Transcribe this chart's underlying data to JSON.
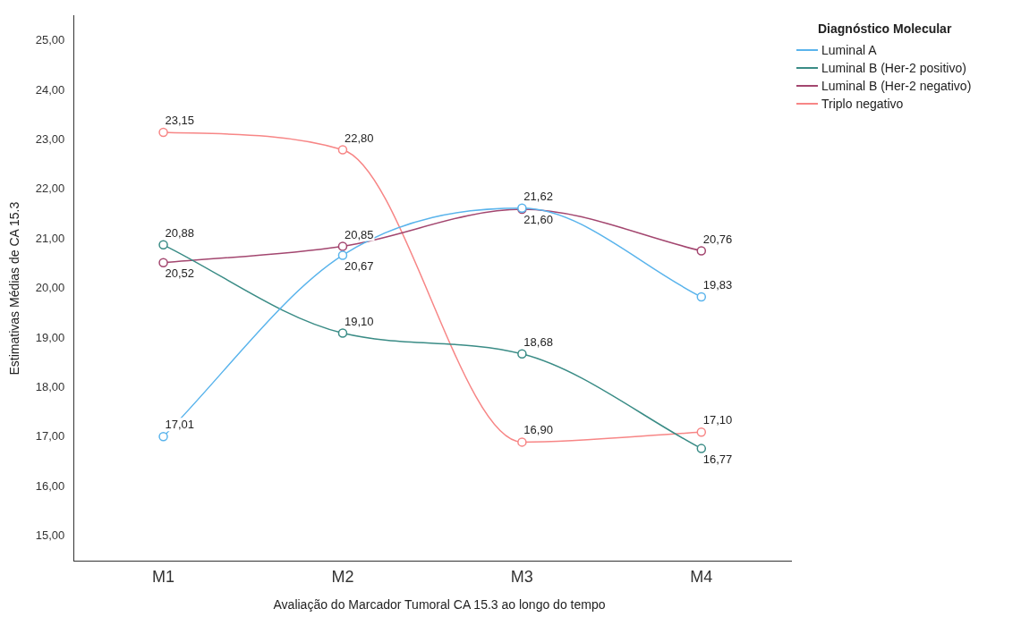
{
  "chart_data": {
    "type": "line",
    "xlabel": "Avaliação do Marcador Tumoral CA 15.3 ao longo do tempo",
    "ylabel": "Estimativas Médias de CA 15.3",
    "legend_title": "Diagnóstico Molecular",
    "categories": [
      "M1",
      "M2",
      "M3",
      "M4"
    ],
    "series": [
      {
        "name": "Luminal A",
        "color": "#5ab4ec",
        "values": [
          17.01,
          20.67,
          21.62,
          19.83
        ],
        "value_labels": [
          "17,01",
          "20,67",
          "21,62",
          "19,83"
        ]
      },
      {
        "name": "Luminal B (Her-2 positivo)",
        "color": "#3a8c86",
        "values": [
          20.88,
          19.1,
          18.68,
          16.77
        ],
        "value_labels": [
          "20,88",
          "19,10",
          "18,68",
          "16,77"
        ]
      },
      {
        "name": "Luminal B (Her-2 negativo)",
        "color": "#a3466f",
        "values": [
          20.52,
          20.85,
          21.6,
          20.76
        ],
        "value_labels": [
          "20,52",
          "20,85",
          "21,60",
          "20,76"
        ]
      },
      {
        "name": "Triplo negativo",
        "color": "#f78686",
        "values": [
          23.15,
          22.8,
          16.9,
          17.1
        ],
        "value_labels": [
          "23,15",
          "22,80",
          "16,90",
          "17,10"
        ]
      }
    ],
    "ylim": [
      14.5,
      25.5
    ],
    "yticks": [
      {
        "value": 15,
        "label": "15,00"
      },
      {
        "value": 16,
        "label": "16,00"
      },
      {
        "value": 17,
        "label": "17,00"
      },
      {
        "value": 18,
        "label": "18,00"
      },
      {
        "value": 19,
        "label": "19,00"
      },
      {
        "value": 20,
        "label": "20,00"
      },
      {
        "value": 21,
        "label": "21,00"
      },
      {
        "value": 22,
        "label": "22,00"
      },
      {
        "value": 23,
        "label": "23,00"
      },
      {
        "value": 24,
        "label": "24,00"
      },
      {
        "value": 25,
        "label": "25,00"
      }
    ],
    "grid": false,
    "legend": "top right",
    "marker": "circle",
    "line_style": "solid"
  }
}
